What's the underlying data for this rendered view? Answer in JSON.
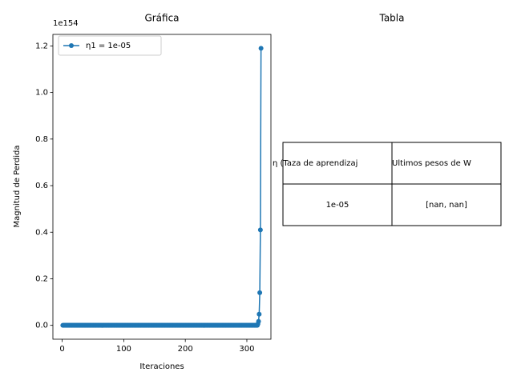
{
  "chart_data": {
    "type": "line",
    "title": "Gráfica",
    "x_label": "Iteraciones",
    "y_label": "Magnitud de Perdida",
    "offset_label": "1e154",
    "x": [
      1,
      2,
      3,
      4,
      5,
      6,
      7,
      8,
      9,
      10,
      11,
      12,
      13,
      14,
      15,
      16,
      17,
      18,
      19,
      20,
      21,
      22,
      23,
      24,
      25,
      26,
      27,
      28,
      29,
      30,
      31,
      32,
      33,
      34,
      35,
      36,
      37,
      38,
      39,
      40,
      41,
      42,
      43,
      44,
      45,
      46,
      47,
      48,
      49,
      50,
      51,
      52,
      53,
      54,
      55,
      56,
      57,
      58,
      59,
      60,
      61,
      62,
      63,
      64,
      65,
      66,
      67,
      68,
      69,
      70,
      71,
      72,
      73,
      74,
      75,
      76,
      77,
      78,
      79,
      80,
      81,
      82,
      83,
      84,
      85,
      86,
      87,
      88,
      89,
      90,
      91,
      92,
      93,
      94,
      95,
      96,
      97,
      98,
      99,
      100,
      101,
      102,
      103,
      104,
      105,
      106,
      107,
      108,
      109,
      110,
      111,
      112,
      113,
      114,
      115,
      116,
      117,
      118,
      119,
      120,
      121,
      122,
      123,
      124,
      125,
      126,
      127,
      128,
      129,
      130,
      131,
      132,
      133,
      134,
      135,
      136,
      137,
      138,
      139,
      140,
      141,
      142,
      143,
      144,
      145,
      146,
      147,
      148,
      149,
      150,
      151,
      152,
      153,
      154,
      155,
      156,
      157,
      158,
      159,
      160,
      161,
      162,
      163,
      164,
      165,
      166,
      167,
      168,
      169,
      170,
      171,
      172,
      173,
      174,
      175,
      176,
      177,
      178,
      179,
      180,
      181,
      182,
      183,
      184,
      185,
      186,
      187,
      188,
      189,
      190,
      191,
      192,
      193,
      194,
      195,
      196,
      197,
      198,
      199,
      200,
      201,
      202,
      203,
      204,
      205,
      206,
      207,
      208,
      209,
      210,
      211,
      212,
      213,
      214,
      215,
      216,
      217,
      218,
      219,
      220,
      221,
      222,
      223,
      224,
      225,
      226,
      227,
      228,
      229,
      230,
      231,
      232,
      233,
      234,
      235,
      236,
      237,
      238,
      239,
      240,
      241,
      242,
      243,
      244,
      245,
      246,
      247,
      248,
      249,
      250,
      251,
      252,
      253,
      254,
      255,
      256,
      257,
      258,
      259,
      260,
      261,
      262,
      263,
      264,
      265,
      266,
      267,
      268,
      269,
      270,
      271,
      272,
      273,
      274,
      275,
      276,
      277,
      278,
      279,
      280,
      281,
      282,
      283,
      284,
      285,
      286,
      287,
      288,
      289,
      290,
      291,
      292,
      293,
      294,
      295,
      296,
      297,
      298,
      299,
      300,
      301,
      302,
      303,
      304,
      305,
      306,
      307,
      308,
      309,
      310,
      311,
      312,
      313,
      314,
      315,
      316,
      317,
      318,
      319,
      320,
      321,
      322,
      323
    ],
    "series": [
      {
        "name": "η1 = 1e-05",
        "color": "#1f77b4",
        "values": [
          0,
          0,
          0,
          0,
          0,
          0,
          0,
          0,
          0,
          0,
          0,
          0,
          0,
          0,
          0,
          0,
          0,
          0,
          0,
          0,
          0,
          0,
          0,
          0,
          0,
          0,
          0,
          0,
          0,
          0,
          0,
          0,
          0,
          0,
          0,
          0,
          0,
          0,
          0,
          0,
          0,
          0,
          0,
          0,
          0,
          0,
          0,
          0,
          0,
          0,
          0,
          0,
          0,
          0,
          0,
          0,
          0,
          0,
          0,
          0,
          0,
          0,
          0,
          0,
          0,
          0,
          0,
          0,
          0,
          0,
          0,
          0,
          0,
          0,
          0,
          0,
          0,
          0,
          0,
          0,
          0,
          0,
          0,
          0,
          0,
          0,
          0,
          0,
          0,
          0,
          0,
          0,
          0,
          0,
          0,
          0,
          0,
          0,
          0,
          0,
          0,
          0,
          0,
          0,
          0,
          0,
          0,
          0,
          0,
          0,
          0,
          0,
          0,
          0,
          0,
          0,
          0,
          0,
          0,
          0,
          0,
          0,
          0,
          0,
          0,
          0,
          0,
          0,
          0,
          0,
          0,
          0,
          0,
          0,
          0,
          0,
          0,
          0,
          0,
          0,
          0,
          0,
          0,
          0,
          0,
          0,
          0,
          0,
          0,
          0,
          0,
          0,
          0,
          0,
          0,
          0,
          0,
          0,
          0,
          0,
          0,
          0,
          0,
          0,
          0,
          0,
          0,
          0,
          0,
          0,
          0,
          0,
          0,
          0,
          0,
          0,
          0,
          0,
          0,
          0,
          0,
          0,
          0,
          0,
          0,
          0,
          0,
          0,
          0,
          0,
          0,
          0,
          0,
          0,
          0,
          0,
          0,
          0,
          0,
          0,
          0,
          0,
          0,
          0,
          0,
          0,
          0,
          0,
          0,
          0,
          0,
          0,
          0,
          0,
          0,
          0,
          0,
          0,
          0,
          0,
          0,
          0,
          0,
          0,
          0,
          0,
          0,
          0,
          0,
          0,
          0,
          0,
          0,
          0,
          0,
          0,
          0,
          0,
          0,
          0,
          0,
          0,
          0,
          0,
          0,
          0,
          0,
          0,
          0,
          0,
          0,
          0,
          0,
          0,
          0,
          0,
          0,
          0,
          0,
          0,
          0,
          0,
          0,
          0,
          0,
          0,
          0,
          0,
          0,
          0,
          0,
          0,
          0,
          0,
          0,
          0,
          0,
          0,
          0,
          0,
          0,
          0,
          0,
          0,
          0,
          0,
          0,
          0,
          0,
          0,
          0,
          0,
          0,
          0,
          0,
          0,
          0,
          0,
          0,
          0,
          0,
          0,
          0,
          0,
          0,
          0,
          0,
          0,
          0,
          0,
          0,
          0,
          0,
          0,
          0,
          0,
          0,
          0.006,
          0.017,
          0.048,
          0.14,
          0.41,
          1.19
        ]
      }
    ],
    "xlim": [
      -15.1,
      339.1
    ],
    "xticks": [
      0,
      100,
      200,
      300
    ],
    "ylim": [
      -0.0595,
      1.2495
    ],
    "yticks": [
      {
        "value": 0,
        "label": "0.0"
      },
      {
        "value": 0.2,
        "label": "0.2"
      },
      {
        "value": 0.4,
        "label": "0.4"
      },
      {
        "value": 0.6,
        "label": "0.6"
      },
      {
        "value": 0.8,
        "label": "0.8"
      },
      {
        "value": 1.0,
        "label": "1.0"
      },
      {
        "value": 1.2,
        "label": "1.2"
      }
    ],
    "grid": false,
    "markers": true,
    "legend": "upper left"
  },
  "table": {
    "title": "Tabla",
    "columns": [
      "η (Taza de aprendizaj",
      "Ultimos pesos de W"
    ],
    "rows": [
      [
        "1e-05",
        "[nan, nan]"
      ]
    ]
  }
}
